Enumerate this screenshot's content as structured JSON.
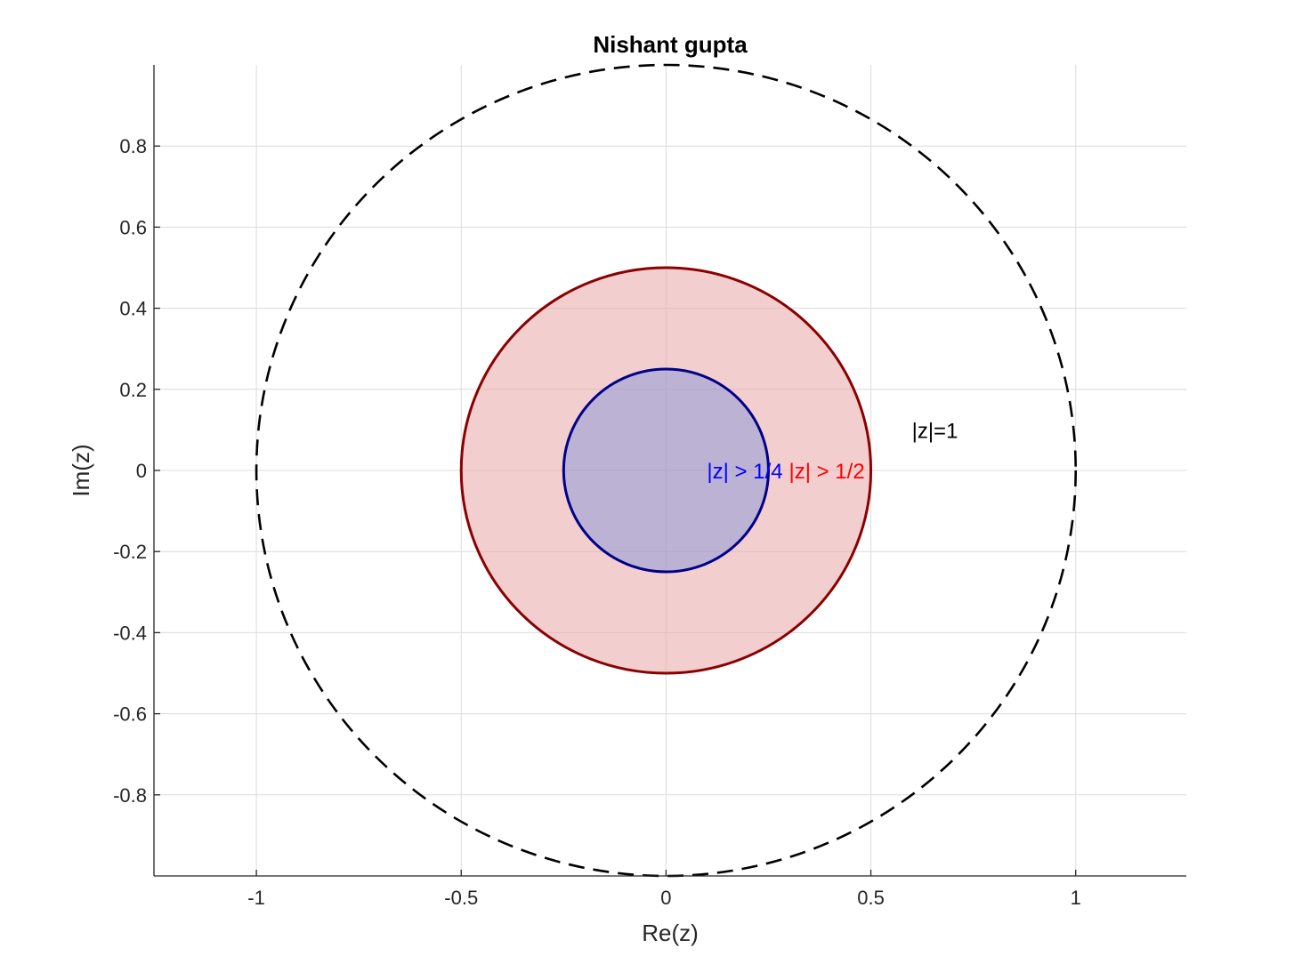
{
  "chart_data": {
    "type": "scatter",
    "title": "Nishant gupta",
    "xlabel": "Re(z)",
    "ylabel": "Im(z)",
    "xlim": [
      -1.25,
      1.27
    ],
    "ylim": [
      -1,
      1
    ],
    "grid": true,
    "x_ticks": [
      -1,
      -0.5,
      0,
      0.5,
      1
    ],
    "x_tick_labels": [
      "-1",
      "-0.5",
      "0",
      "0.5",
      "1"
    ],
    "y_ticks": [
      -0.8,
      -0.6,
      -0.4,
      -0.2,
      0,
      0.2,
      0.4,
      0.6,
      0.8
    ],
    "y_tick_labels": [
      "-0.8",
      "-0.6",
      "-0.4",
      "-0.2",
      "0",
      "0.2",
      "0.4",
      "0.6",
      "0.8"
    ],
    "circles": [
      {
        "radius": 1,
        "center": [
          0,
          0
        ],
        "style": "dashed",
        "stroke": "#000000",
        "fill": "none"
      },
      {
        "radius": 0.5,
        "center": [
          0,
          0
        ],
        "style": "solid",
        "stroke": "#8b0000",
        "fill": "#e9a5a5",
        "fill_opacity": 0.55
      },
      {
        "radius": 0.25,
        "center": [
          0,
          0
        ],
        "style": "solid",
        "stroke": "#00008b",
        "fill": "#8c9bd9",
        "fill_opacity": 0.55
      }
    ],
    "annotations": [
      {
        "text": "|z|=1",
        "x": 0.6,
        "y": 0.1,
        "color": "#000000"
      },
      {
        "text": "|z| > 1/4",
        "x": 0.1,
        "y": 0,
        "color": "#0000ff"
      },
      {
        "text": "|z| > 1/2",
        "x": 0.3,
        "y": 0,
        "color": "#ff0000"
      }
    ]
  }
}
